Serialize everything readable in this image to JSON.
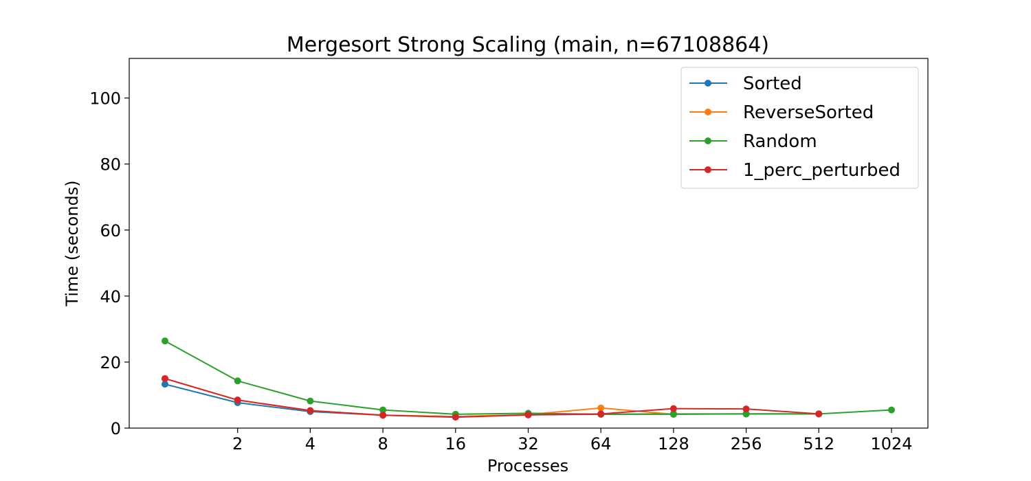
{
  "chart_data": {
    "type": "line",
    "title": "Mergesort Strong Scaling (main, n=67108864)",
    "xlabel": "Processes",
    "ylabel": "Time (seconds)",
    "x_scale": "log2",
    "x_ticks": [
      "2",
      "4",
      "8",
      "16",
      "32",
      "64",
      "128",
      "256",
      "512",
      "1024"
    ],
    "ylim": [
      0,
      112
    ],
    "y_ticks": [
      0,
      20,
      40,
      60,
      80,
      100
    ],
    "grid": false,
    "legend_position": "top-right",
    "series": [
      {
        "name": "Sorted",
        "color": "#1f77b4",
        "x": [
          1,
          2,
          4,
          8,
          16,
          32,
          64,
          128,
          256,
          512
        ],
        "y": [
          13.3,
          7.7,
          5.0,
          3.9,
          3.5,
          4.0,
          4.2,
          4.3,
          4.3,
          4.3
        ]
      },
      {
        "name": "ReverseSorted",
        "color": "#ff7f0e",
        "x": [
          1,
          2,
          4,
          8,
          16,
          32,
          64,
          128,
          256,
          512
        ],
        "y": [
          15.0,
          8.5,
          5.3,
          3.9,
          3.5,
          4.1,
          6.1,
          4.2,
          4.3,
          4.3
        ]
      },
      {
        "name": "Random",
        "color": "#2ca02c",
        "x": [
          1,
          2,
          4,
          8,
          16,
          32,
          64,
          128,
          256,
          512,
          1024
        ],
        "y": [
          26.4,
          14.3,
          8.2,
          5.5,
          4.2,
          4.5,
          4.2,
          4.2,
          4.3,
          4.3,
          5.5
        ]
      },
      {
        "name": "1_perc_perturbed",
        "color": "#d62728",
        "x": [
          1,
          2,
          4,
          8,
          16,
          32,
          64,
          128,
          256,
          512
        ],
        "y": [
          15.0,
          8.5,
          5.3,
          3.9,
          3.3,
          4.0,
          4.3,
          5.9,
          5.8,
          4.3
        ]
      }
    ]
  }
}
